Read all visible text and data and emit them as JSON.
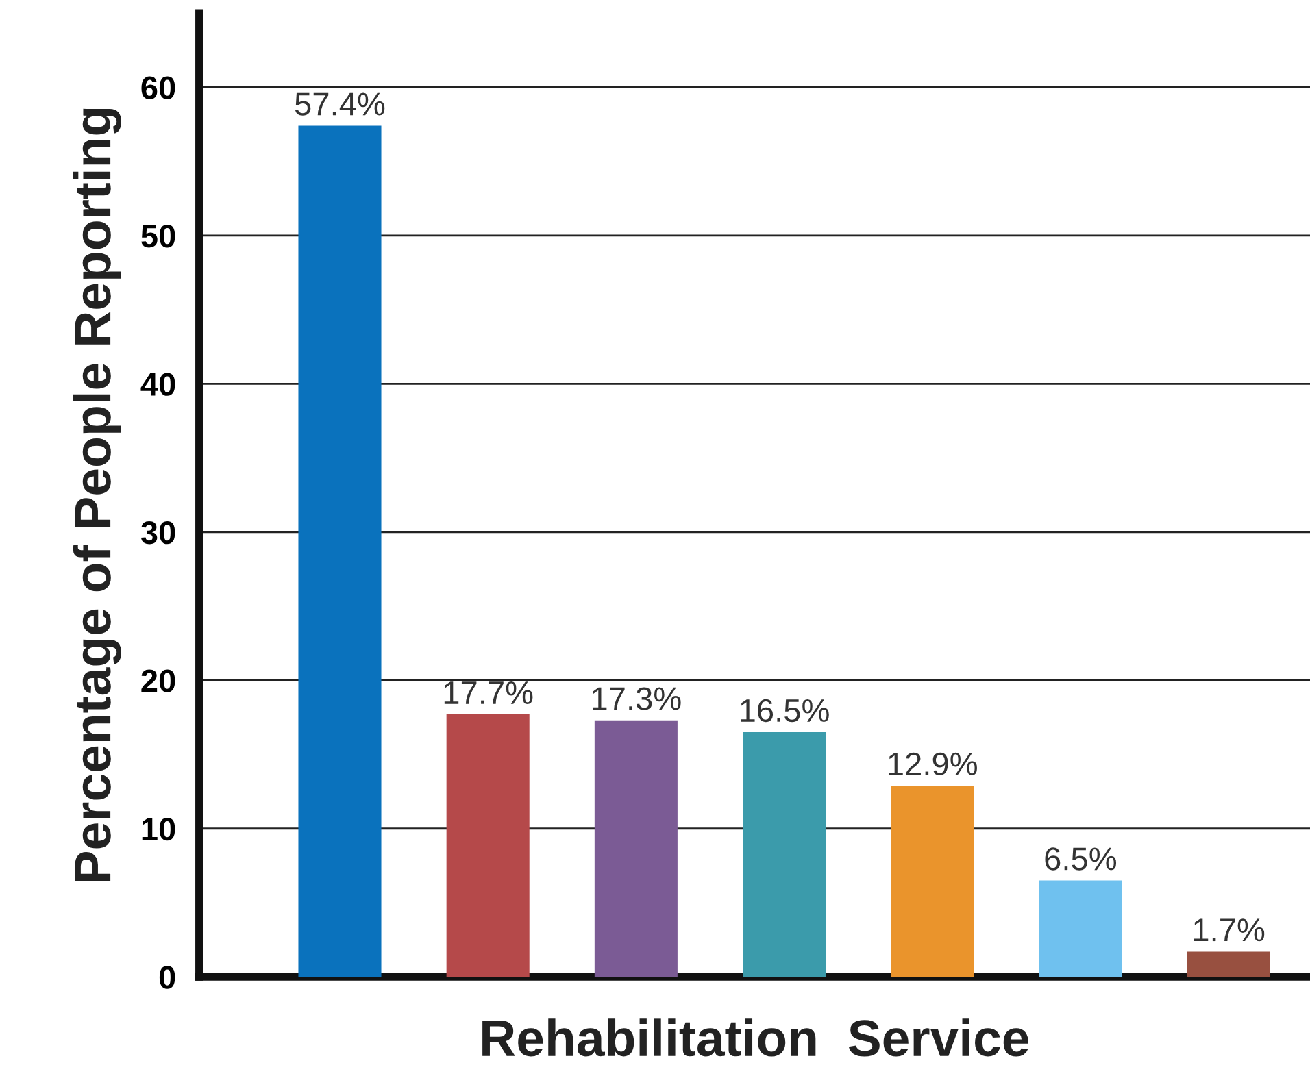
{
  "chart_data": {
    "type": "bar",
    "xlabel": "Rehabilitation  Service",
    "ylabel": "Percentage of People Reporting",
    "categories": [
      null,
      null,
      null,
      null,
      null,
      null,
      null
    ],
    "values": [
      57.4,
      17.7,
      17.3,
      16.5,
      12.9,
      6.5,
      1.7
    ],
    "colors": [
      "#0a72bd",
      "#b5494a",
      "#7b5b95",
      "#3b9bab",
      "#ea942c",
      "#6fc1ef",
      "#985040"
    ],
    "value_labels": [
      "57.4%",
      "17.7%",
      "17.3%",
      "16.5%",
      "12.9%",
      "6.5%",
      "1.7%"
    ],
    "ylim": [
      0,
      65
    ],
    "yticks": [
      0,
      10,
      20,
      30,
      40,
      50,
      60
    ],
    "grid": "y",
    "tick_labels": "y"
  }
}
